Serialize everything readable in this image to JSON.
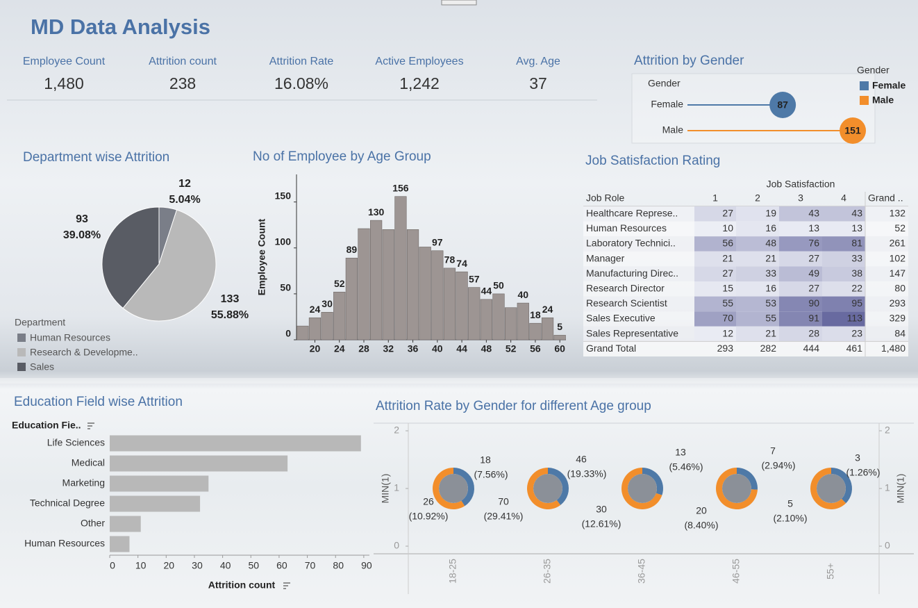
{
  "title": "MD Data Analysis",
  "kpis": [
    {
      "label": "Employee Count",
      "value": "1,480"
    },
    {
      "label": "Attrition count",
      "value": "238"
    },
    {
      "label": "Attrition Rate",
      "value": "16.08%"
    },
    {
      "label": "Active Employees",
      "value": "1,242"
    },
    {
      "label": "Avg. Age",
      "value": "37"
    }
  ],
  "chart_data": [
    {
      "type": "lollipop",
      "title": "Attrition by Gender",
      "axis_label": "Gender",
      "legend_title": "Gender",
      "categories": [
        "Female",
        "Male"
      ],
      "values": [
        87,
        151
      ],
      "colors": [
        "#4e79a7",
        "#f28e2b"
      ],
      "xlim": [
        0,
        170
      ]
    },
    {
      "type": "pie",
      "title": "Department wise Attrition",
      "legend_title": "Department",
      "categories": [
        "Human Resources",
        "Research & Developme..",
        "Sales"
      ],
      "values": [
        12,
        133,
        93
      ],
      "share_labels": [
        "5.04%",
        "55.88%",
        "39.08%"
      ],
      "colors": [
        "#7a7e88",
        "#b9b9b9",
        "#595c64"
      ]
    },
    {
      "type": "histogram",
      "title": "No of Employee by Age Group",
      "ylabel": "Employee Count",
      "bins": [
        17,
        19,
        21,
        23,
        25,
        27,
        29,
        31,
        33,
        35,
        37,
        39,
        41,
        43,
        45,
        47,
        49,
        51,
        53,
        55,
        57,
        59,
        61
      ],
      "values": [
        15,
        24,
        30,
        52,
        89,
        121,
        130,
        120,
        156,
        120,
        101,
        97,
        78,
        74,
        57,
        44,
        50,
        35,
        40,
        18,
        24,
        5
      ],
      "value_labels": [
        null,
        "24",
        "30",
        "52",
        "89",
        null,
        "130",
        null,
        "156",
        null,
        null,
        "97",
        "78",
        "74",
        "57",
        "44",
        "50",
        null,
        "40",
        "18",
        "24",
        "5"
      ],
      "color": "#9d9593",
      "xlim": [
        17,
        61
      ],
      "xticks": [
        20,
        24,
        28,
        32,
        36,
        40,
        44,
        48,
        52,
        56,
        60
      ],
      "ylim": [
        0,
        180
      ],
      "yticks": [
        0,
        50,
        100,
        150
      ]
    },
    {
      "type": "hbar",
      "title": "Education Field wise Attrition",
      "axis_header": "Education Fie..",
      "xlabel": "Attrition count",
      "categories": [
        "Life Sciences",
        "Medical",
        "Marketing",
        "Technical Degree",
        "Other",
        "Human Resources"
      ],
      "values": [
        89,
        63,
        35,
        32,
        11,
        7
      ],
      "color": "#b8b8b8",
      "xlim": [
        0,
        92
      ],
      "xticks": [
        0,
        10,
        20,
        30,
        40,
        50,
        60,
        70,
        80,
        90
      ]
    },
    {
      "type": "donut",
      "title": "Attrition Rate by Gender for different Age group",
      "ylabel": "MIN(1)",
      "y2label": "MIN(1)",
      "categories": [
        "18-25",
        "26-35",
        "36-45",
        "46-55",
        "55+"
      ],
      "positions": [
        1,
        1,
        1,
        1,
        1
      ],
      "ylim": [
        0,
        2
      ],
      "yticks": [
        0,
        1,
        2
      ],
      "y2lim": [
        0,
        2
      ],
      "y2ticks": [
        0,
        1,
        2
      ],
      "series": [
        {
          "color": "#4e79a7",
          "values": [
            18,
            46,
            13,
            7,
            3
          ],
          "share_labels": [
            "(7.56%)",
            "(19.33%)",
            "(5.46%)",
            "(2.94%)",
            "(1.26%)"
          ]
        },
        {
          "color": "#f28e2b",
          "values": [
            26,
            70,
            30,
            20,
            5
          ],
          "share_labels": [
            "(10.92%)",
            "(29.41%)",
            "(12.61%)",
            "(8.40%)",
            "(2.10%)"
          ]
        }
      ]
    }
  ],
  "table": {
    "title": "Job Satisfaction Rating",
    "group_header": "Job Satisfaction",
    "columns": [
      "Job Role",
      "1",
      "2",
      "3",
      "4",
      "Grand .."
    ],
    "rows": [
      [
        "Healthcare Represe..",
        27,
        19,
        43,
        43,
        132
      ],
      [
        "Human Resources",
        10,
        16,
        13,
        13,
        52
      ],
      [
        "Laboratory Technici..",
        56,
        48,
        76,
        81,
        261
      ],
      [
        "Manager",
        21,
        21,
        27,
        33,
        102
      ],
      [
        "Manufacturing Direc..",
        27,
        33,
        49,
        38,
        147
      ],
      [
        "Research Director",
        15,
        16,
        27,
        22,
        80
      ],
      [
        "Research Scientist",
        55,
        53,
        90,
        95,
        293
      ],
      [
        "Sales Executive",
        70,
        55,
        91,
        113,
        329
      ],
      [
        "Sales Representative",
        12,
        21,
        28,
        23,
        84
      ]
    ],
    "total": [
      "Grand Total",
      293,
      282,
      444,
      461,
      "1,480"
    ]
  }
}
